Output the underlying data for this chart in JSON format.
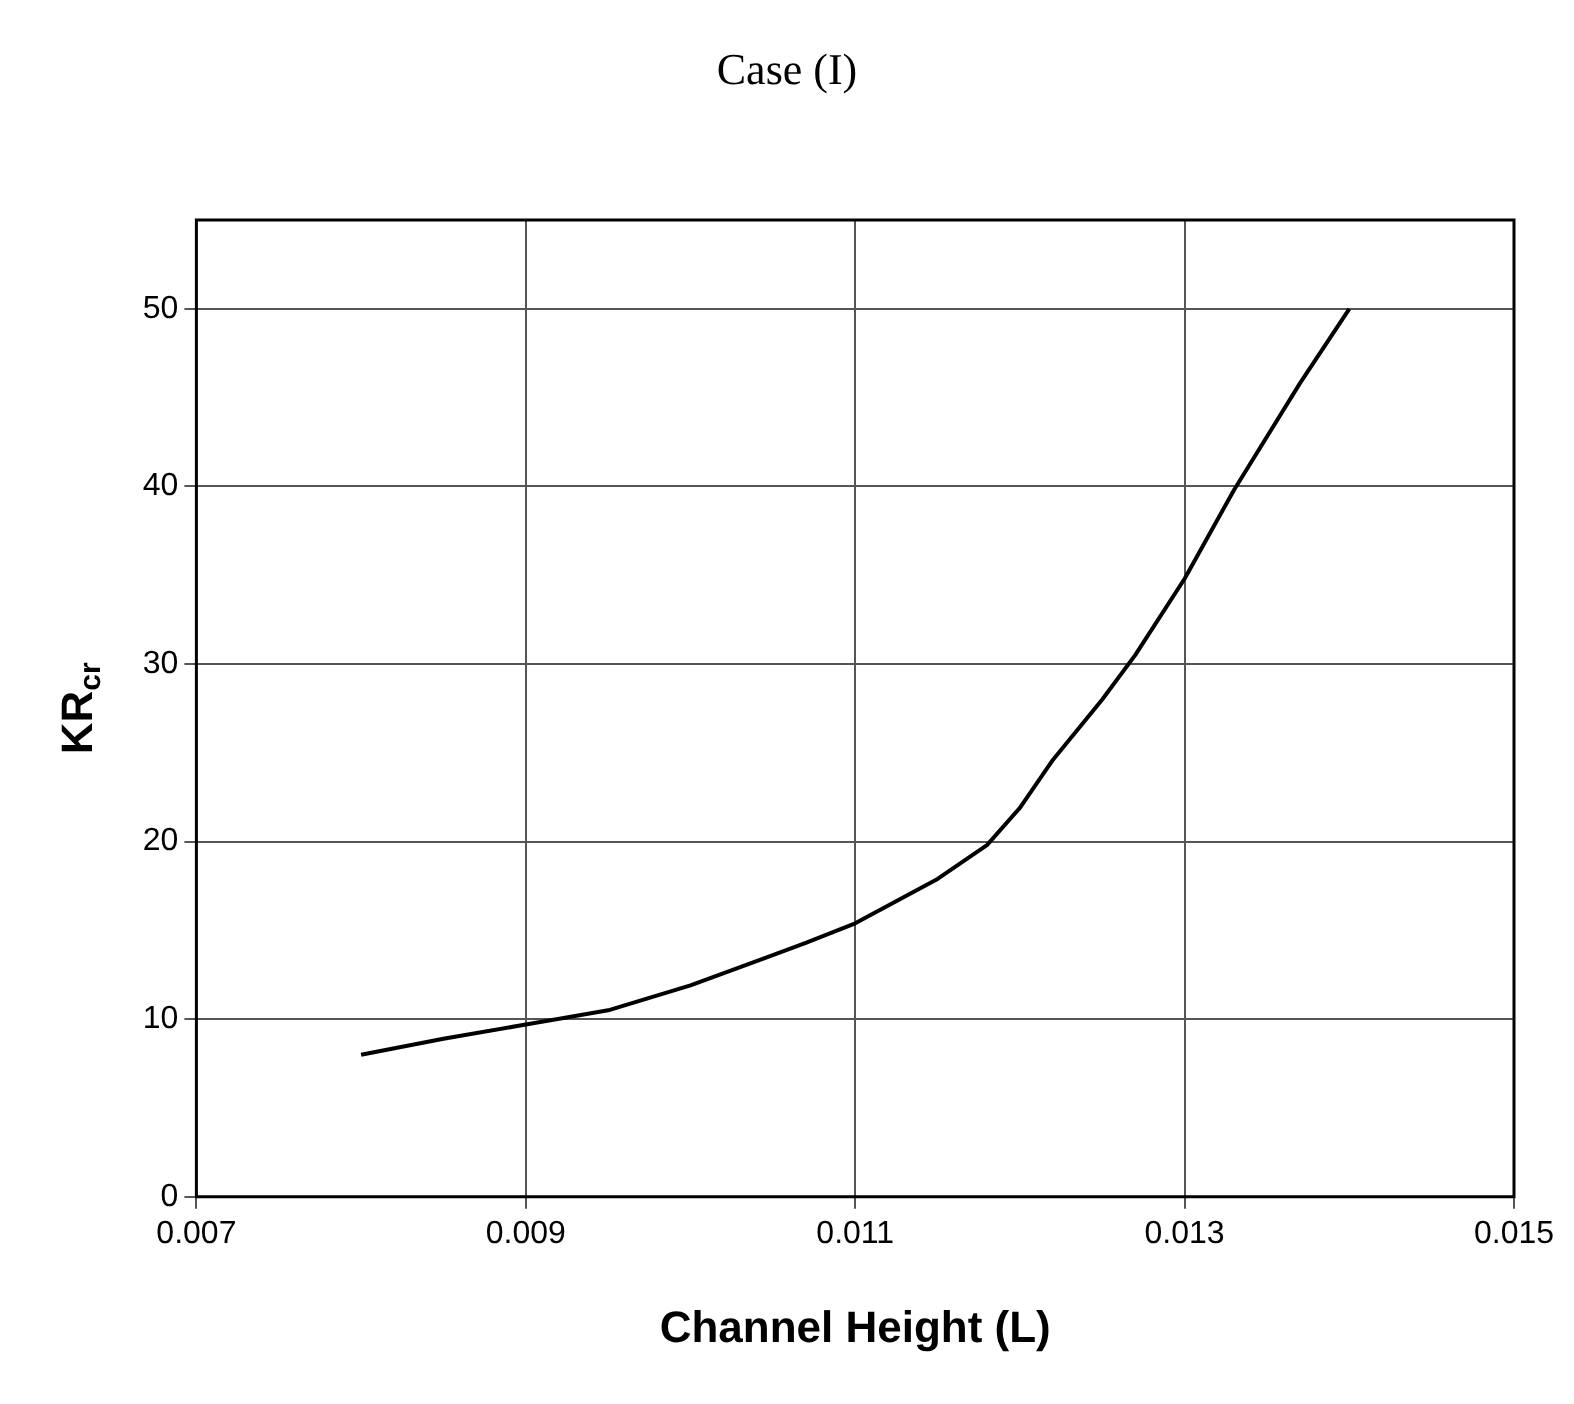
{
  "chart_data": {
    "type": "line",
    "title": "Case (I)",
    "xlabel": "Channel Height (L)",
    "ylabel": "KR$_{cr}$",
    "x": [
      0.008,
      0.0085,
      0.009,
      0.0095,
      0.01,
      0.0107,
      0.011,
      0.0115,
      0.0118,
      0.012,
      0.0122,
      0.0125,
      0.0127,
      0.013,
      0.0133,
      0.0137,
      0.014
    ],
    "series": [
      {
        "color": "#000000",
        "values": [
          8,
          8.9,
          9.7,
          10.5,
          11.9,
          14.3,
          15.4,
          17.9,
          19.8,
          21.9,
          24.6,
          28,
          30.5,
          34.8,
          39.8,
          45.8,
          50
        ]
      }
    ],
    "xlim": [
      0.007,
      0.015
    ],
    "xticks": [
      0.007,
      0.009,
      0.011,
      0.013,
      0.015
    ],
    "ylim": [
      0,
      55
    ],
    "yticks": [
      0,
      10,
      20,
      30,
      40,
      50
    ],
    "grid": true,
    "legend": false,
    "marker": "none",
    "line_style": "solid"
  }
}
